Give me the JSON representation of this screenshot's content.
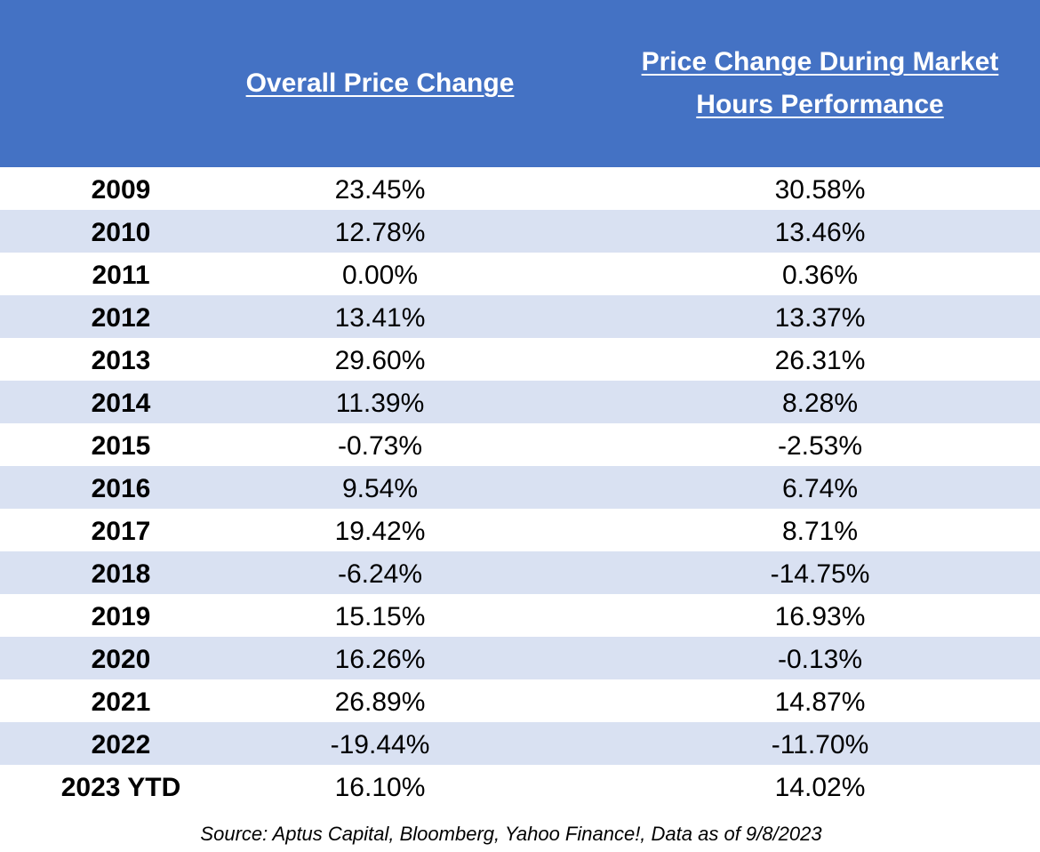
{
  "chart_data": {
    "type": "table",
    "columns": [
      "",
      "Overall Price Change",
      "Price Change During Market Hours Performance"
    ],
    "header": {
      "year": "",
      "overall": "Overall Price Change",
      "market": "Price Change During Market Hours Performance"
    },
    "rows": [
      {
        "year": "2009",
        "overall": "23.45%",
        "market": "30.58%"
      },
      {
        "year": "2010",
        "overall": "12.78%",
        "market": "13.46%"
      },
      {
        "year": "2011",
        "overall": "0.00%",
        "market": "0.36%"
      },
      {
        "year": "2012",
        "overall": "13.41%",
        "market": "13.37%"
      },
      {
        "year": "2013",
        "overall": "29.60%",
        "market": "26.31%"
      },
      {
        "year": "2014",
        "overall": "11.39%",
        "market": "8.28%"
      },
      {
        "year": "2015",
        "overall": "-0.73%",
        "market": "-2.53%"
      },
      {
        "year": "2016",
        "overall": "9.54%",
        "market": "6.74%"
      },
      {
        "year": "2017",
        "overall": "19.42%",
        "market": "8.71%"
      },
      {
        "year": "2018",
        "overall": "-6.24%",
        "market": "-14.75%"
      },
      {
        "year": "2019",
        "overall": "15.15%",
        "market": "16.93%"
      },
      {
        "year": "2020",
        "overall": "16.26%",
        "market": "-0.13%"
      },
      {
        "year": "2021",
        "overall": "26.89%",
        "market": "14.87%"
      },
      {
        "year": "2022",
        "overall": "-19.44%",
        "market": "-11.70%"
      },
      {
        "year": "2023 YTD",
        "overall": "16.10%",
        "market": "14.02%"
      }
    ],
    "source": "Source: Aptus Capital, Bloomberg, Yahoo Finance!, Data as of 9/8/2023"
  },
  "colors": {
    "header_background": "#4472c4",
    "header_text": "#ffffff",
    "alt_row_background": "#d9e1f2",
    "row_background": "#ffffff"
  }
}
